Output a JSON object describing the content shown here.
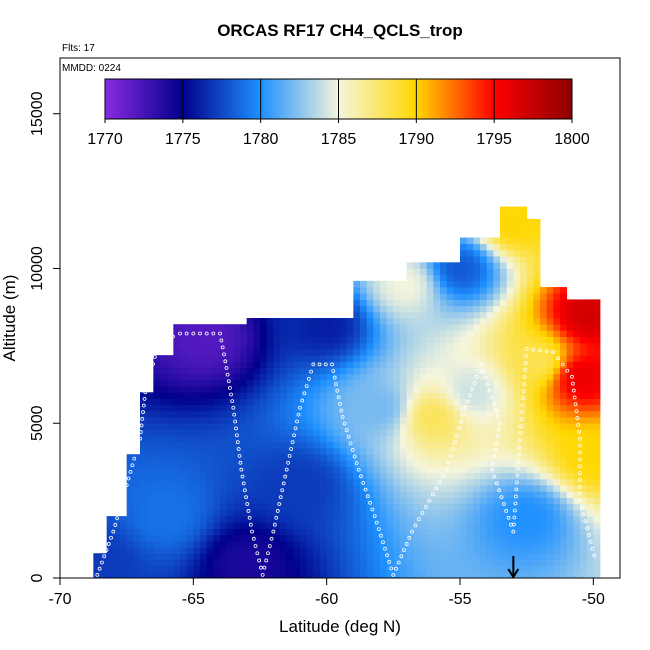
{
  "chart_data": {
    "type": "heatmap",
    "title": "ORCAS RF17 CH4_QCLS_trop",
    "xlabel": "Latitude (deg N)",
    "ylabel": "Altitude (m)",
    "xlim": [
      -70,
      -49
    ],
    "ylim": [
      0,
      16800
    ],
    "x_ticks": [
      -70,
      -65,
      -60,
      -55,
      -50
    ],
    "x_tick_labels": [
      "-70",
      "-65",
      "-60",
      "-55",
      "-50"
    ],
    "y_ticks": [
      0,
      5000,
      10000,
      15000
    ],
    "y_tick_labels": [
      "0",
      "5000",
      "10000",
      "15000"
    ],
    "annotations": {
      "flights": "Flts: 17",
      "date": "MMDD: 0224"
    },
    "colorbar": {
      "min": 1770,
      "max": 1800,
      "ticks": [
        1770,
        1775,
        1780,
        1785,
        1790,
        1795,
        1800
      ],
      "tick_labels": [
        "1770",
        "1775",
        "1780",
        "1785",
        "1790",
        "1795",
        "1800"
      ],
      "colors": [
        "#8a2be2",
        "#00008b",
        "#1e90ff",
        "#f5f5dc",
        "#ffd700",
        "#ff0000",
        "#8b0000"
      ]
    },
    "arrow_marker": {
      "x": -53,
      "label": ""
    },
    "samples": [
      {
        "x": -68.5,
        "alt": 500,
        "value": 1777
      },
      {
        "x": -66.0,
        "alt": 2000,
        "value": 1779
      },
      {
        "x": -63.0,
        "alt": 500,
        "value": 1774
      },
      {
        "x": -61.0,
        "alt": 3000,
        "value": 1777
      },
      {
        "x": -58.0,
        "alt": 5500,
        "value": 1782
      },
      {
        "x": -56.0,
        "alt": 5200,
        "value": 1788
      },
      {
        "x": -54.5,
        "alt": 6000,
        "value": 1784
      },
      {
        "x": -52.0,
        "alt": 7000,
        "value": 1788
      },
      {
        "x": -50.5,
        "alt": 6500,
        "value": 1796
      },
      {
        "x": -50.2,
        "alt": 8500,
        "value": 1797
      },
      {
        "x": -55.0,
        "alt": 10000,
        "value": 1778
      },
      {
        "x": -53.0,
        "alt": 11500,
        "value": 1790
      },
      {
        "x": -64.5,
        "alt": 7800,
        "value": 1772
      },
      {
        "x": -60.0,
        "alt": 8200,
        "value": 1776
      },
      {
        "x": -57.0,
        "alt": 9500,
        "value": 1785
      },
      {
        "x": -52.5,
        "alt": 2000,
        "value": 1780
      },
      {
        "x": -50.0,
        "alt": 4000,
        "value": 1790
      }
    ],
    "flight_track": [
      [
        -68.6,
        100
      ],
      [
        -68.0,
        1500
      ],
      [
        -67.5,
        3000
      ],
      [
        -67.0,
        4500
      ],
      [
        -66.8,
        6000
      ],
      [
        -66.3,
        7600
      ],
      [
        -65.5,
        7900
      ],
      [
        -64.0,
        7900
      ],
      [
        -63.8,
        7000
      ],
      [
        -63.5,
        5500
      ],
      [
        -63.2,
        3500
      ],
      [
        -62.8,
        1500
      ],
      [
        -62.4,
        100
      ],
      [
        -62.0,
        1500
      ],
      [
        -61.5,
        3500
      ],
      [
        -61.0,
        5500
      ],
      [
        -60.5,
        6900
      ],
      [
        -59.8,
        6900
      ],
      [
        -59.4,
        5200
      ],
      [
        -58.8,
        3500
      ],
      [
        -58.2,
        2000
      ],
      [
        -57.5,
        100
      ],
      [
        -56.8,
        1500
      ],
      [
        -55.5,
        3500
      ],
      [
        -54.8,
        5500
      ],
      [
        -54.2,
        6900
      ],
      [
        -53.5,
        5000
      ],
      [
        -53.8,
        3500
      ],
      [
        -53.0,
        1500
      ],
      [
        -52.5,
        7400
      ],
      [
        -51.5,
        7300
      ],
      [
        -50.8,
        6500
      ],
      [
        -50.5,
        4500
      ],
      [
        -50.5,
        2500
      ],
      [
        -49.9,
        500
      ]
    ]
  }
}
